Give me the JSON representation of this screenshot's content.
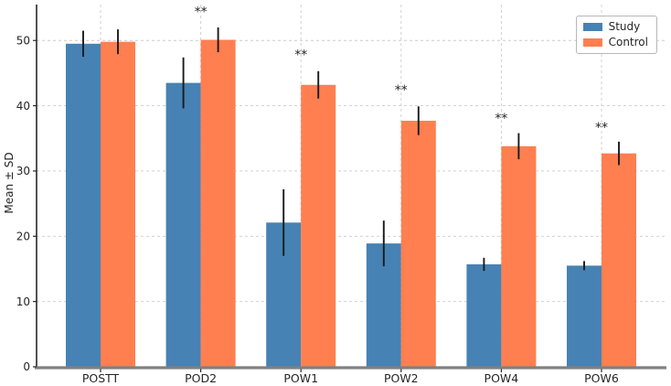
{
  "figure": {
    "title": "",
    "ylabel": "Mean ± SD"
  },
  "chart_data": {
    "type": "bar",
    "title": "",
    "xlabel": "",
    "ylabel": "Mean ± SD",
    "categories": [
      "POSTT",
      "POD2",
      "POW1",
      "POW2",
      "POW4",
      "POW6"
    ],
    "series": [
      {
        "name": "Study",
        "color": "#4682B4",
        "values": [
          49.5,
          43.5,
          22.1,
          18.9,
          15.7,
          15.5
        ],
        "sd": [
          2.0,
          3.9,
          5.1,
          3.5,
          1.0,
          0.7
        ]
      },
      {
        "name": "Control",
        "color": "#FF7F50",
        "values": [
          49.8,
          50.1,
          43.2,
          37.7,
          33.8,
          32.7
        ],
        "sd": [
          1.9,
          1.9,
          2.1,
          2.2,
          2.0,
          1.8
        ]
      }
    ],
    "error_bars": true,
    "error_bar_color": "#1a1a1a",
    "significance": [
      {
        "category": "POD2",
        "label": "**",
        "y": 55.0
      },
      {
        "category": "POW1",
        "label": "**",
        "y": 48.4
      },
      {
        "category": "POW2",
        "label": "**",
        "y": 43.0
      },
      {
        "category": "POW4",
        "label": "**",
        "y": 38.7
      },
      {
        "category": "POW6",
        "label": "**",
        "y": 37.3
      }
    ],
    "ylim": [
      0,
      55.5
    ],
    "yticks": [
      0,
      10,
      20,
      30,
      40,
      50
    ],
    "grid": true,
    "grid_color": "#cccccc",
    "grid_style": "dashed",
    "legend_position": "upper right",
    "text_color": "#262626",
    "spine_bottom_color": "#808080",
    "spine_left_color": "#262626"
  }
}
